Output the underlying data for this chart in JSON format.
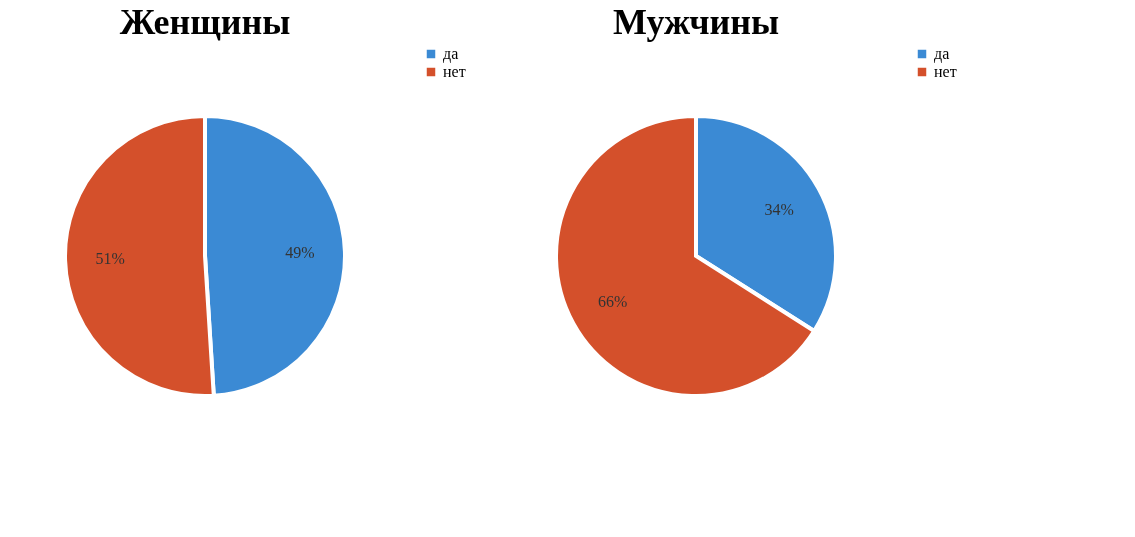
{
  "chart_data": [
    {
      "type": "pie",
      "title": "Женщины",
      "categories": [
        "да",
        "нет"
      ],
      "values": [
        49,
        51
      ],
      "colors": [
        "#3b8ad4",
        "#d4502b"
      ],
      "value_labels": [
        "49%",
        "51%"
      ],
      "legend": "right"
    },
    {
      "type": "pie",
      "title": "Мужчины",
      "categories": [
        "да",
        "нет"
      ],
      "values": [
        34,
        66
      ],
      "colors": [
        "#3b8ad4",
        "#d4502b"
      ],
      "value_labels": [
        "34%",
        "66%"
      ],
      "legend": "right"
    }
  ]
}
